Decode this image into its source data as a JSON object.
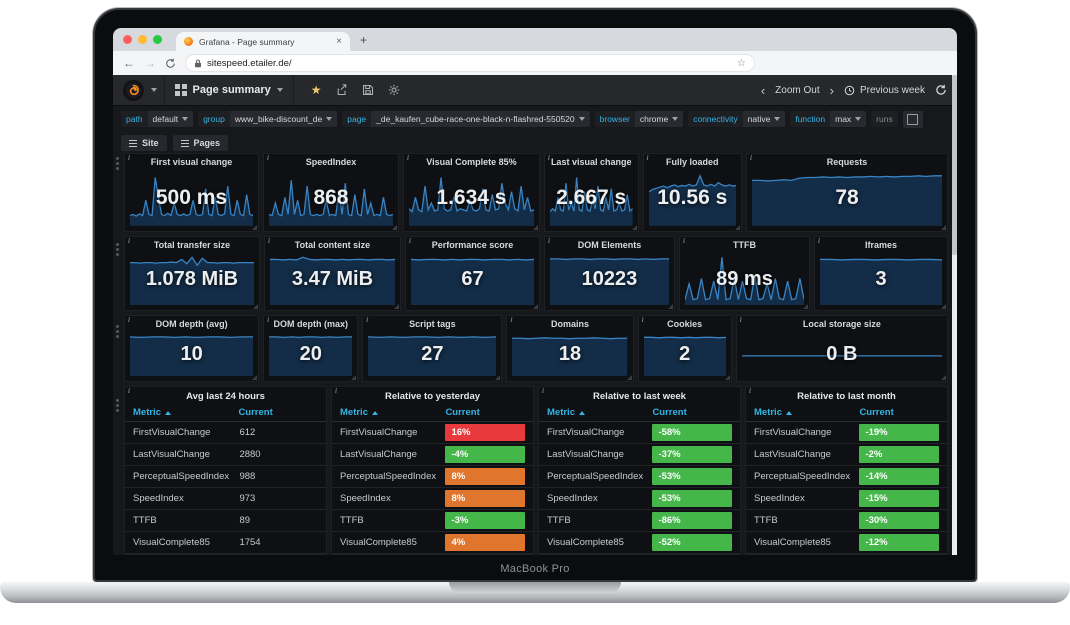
{
  "colors": {
    "green": "#45b649",
    "orange": "#e0752d",
    "red": "#e8393d",
    "accent_blue": "#33b5e5",
    "spark_line": "#3884c4",
    "spark_fill": "rgba(31,110,183,0.32)",
    "star_yellow": "#f2c96d"
  },
  "laptop": {
    "label": "MacBook Pro"
  },
  "browser": {
    "tab_title": "Grafana - Page summary",
    "url": "sitespeed.etailer.de/"
  },
  "icons": {
    "close": "×",
    "new_tab": "+",
    "back": "←",
    "forward": "→",
    "star": "★",
    "bookmark": "☆",
    "chev_left": "‹",
    "chev_right": "›"
  },
  "nav": {
    "title": "Page summary",
    "zoom_out": "Zoom Out",
    "time_range": "Previous week"
  },
  "filters": [
    {
      "label": "path",
      "value": "default"
    },
    {
      "label": "group",
      "value": "www_bike-discount_de"
    },
    {
      "label": "page",
      "value": "_de_kaufen_cube-race-one-black-n-flashred-550520"
    },
    {
      "label": "browser",
      "value": "chrome"
    },
    {
      "label": "connectivity",
      "value": "native"
    },
    {
      "label": "function",
      "value": "max"
    },
    {
      "label": "runs",
      "value": ""
    }
  ],
  "row_buttons": {
    "site": "Site",
    "pages": "Pages"
  },
  "stat_rows": [
    {
      "panels": [
        {
          "title": "First visual change",
          "value": "500 ms",
          "spark": "first_visual_change"
        },
        {
          "title": "SpeedIndex",
          "value": "868",
          "spark": "speedindex"
        },
        {
          "title": "Visual Complete 85%",
          "value": "1.634 s",
          "spark": "visual_complete"
        },
        {
          "title": "Last visual change",
          "value": "2.667 s",
          "spark": "last_visual_change"
        },
        {
          "title": "Fully loaded",
          "value": "10.56 s",
          "spark": "fully_loaded"
        },
        {
          "title": "Requests",
          "value": "78",
          "spark": "requests"
        }
      ]
    },
    {
      "panels": [
        {
          "title": "Total transfer size",
          "value": "1.078 MiB",
          "spark": "transfer"
        },
        {
          "title": "Total content size",
          "value": "3.47 MiB",
          "spark": "content"
        },
        {
          "title": "Performance score",
          "value": "67",
          "spark": "perf"
        },
        {
          "title": "DOM Elements",
          "value": "10223",
          "spark": "dom_elements"
        },
        {
          "title": "TTFB",
          "value": "89 ms",
          "spark": "ttfb"
        },
        {
          "title": "Iframes",
          "value": "3",
          "spark": "iframes"
        }
      ]
    },
    {
      "panels": [
        {
          "title": "DOM depth (avg)",
          "value": "10",
          "spark": "dom_avg"
        },
        {
          "title": "DOM depth (max)",
          "value": "20",
          "spark": "dom_max"
        },
        {
          "title": "Script tags",
          "value": "27",
          "spark": "script_tags"
        },
        {
          "title": "Domains",
          "value": "18",
          "spark": "domains"
        },
        {
          "title": "Cookies",
          "value": "2",
          "spark": "cookies"
        },
        {
          "title": "Local storage size",
          "value": "0 B",
          "spark": "local_storage"
        }
      ]
    }
  ],
  "tables": [
    {
      "title": "Avg last 24 hours",
      "col_metric": "Metric",
      "col_current": "Current",
      "rows": [
        {
          "metric": "FirstVisualChange",
          "current": "612",
          "color": "none"
        },
        {
          "metric": "LastVisualChange",
          "current": "2880",
          "color": "none"
        },
        {
          "metric": "PerceptualSpeedIndex",
          "current": "988",
          "color": "none"
        },
        {
          "metric": "SpeedIndex",
          "current": "973",
          "color": "none"
        },
        {
          "metric": "TTFB",
          "current": "89",
          "color": "none"
        },
        {
          "metric": "VisualComplete85",
          "current": "1754",
          "color": "none"
        }
      ]
    },
    {
      "title": "Relative to yesterday",
      "col_metric": "Metric",
      "col_current": "Current",
      "rows": [
        {
          "metric": "FirstVisualChange",
          "current": "16%",
          "color": "red"
        },
        {
          "metric": "LastVisualChange",
          "current": "-4%",
          "color": "green"
        },
        {
          "metric": "PerceptualSpeedIndex",
          "current": "8%",
          "color": "orange"
        },
        {
          "metric": "SpeedIndex",
          "current": "8%",
          "color": "orange"
        },
        {
          "metric": "TTFB",
          "current": "-3%",
          "color": "green"
        },
        {
          "metric": "VisualComplete85",
          "current": "4%",
          "color": "orange"
        }
      ]
    },
    {
      "title": "Relative to last week",
      "col_metric": "Metric",
      "col_current": "Current",
      "rows": [
        {
          "metric": "FirstVisualChange",
          "current": "-58%",
          "color": "green"
        },
        {
          "metric": "LastVisualChange",
          "current": "-37%",
          "color": "green"
        },
        {
          "metric": "PerceptualSpeedIndex",
          "current": "-53%",
          "color": "green"
        },
        {
          "metric": "SpeedIndex",
          "current": "-53%",
          "color": "green"
        },
        {
          "metric": "TTFB",
          "current": "-86%",
          "color": "green"
        },
        {
          "metric": "VisualComplete85",
          "current": "-52%",
          "color": "green"
        }
      ]
    },
    {
      "title": "Relative to last month",
      "col_metric": "Metric",
      "col_current": "Current",
      "rows": [
        {
          "metric": "FirstVisualChange",
          "current": "-19%",
          "color": "green"
        },
        {
          "metric": "LastVisualChange",
          "current": "-2%",
          "color": "green"
        },
        {
          "metric": "PerceptualSpeedIndex",
          "current": "-14%",
          "color": "green"
        },
        {
          "metric": "SpeedIndex",
          "current": "-15%",
          "color": "green"
        },
        {
          "metric": "TTFB",
          "current": "-30%",
          "color": "green"
        },
        {
          "metric": "VisualComplete85",
          "current": "-12%",
          "color": "green"
        }
      ]
    }
  ],
  "sparklines": {
    "first_visual_change": {
      "fill": "under",
      "points": [
        0.82,
        0.8,
        0.83,
        0.79,
        0.82,
        0.55,
        0.8,
        0.82,
        0.15,
        0.5,
        0.8,
        0.82,
        0.78,
        0.82,
        0.6,
        0.8,
        0.82,
        0.79,
        0.82,
        0.8,
        0.55,
        0.8,
        0.82,
        0.8,
        0.35,
        0.8,
        0.82,
        0.5,
        0.8,
        0.82,
        0.79,
        0.3,
        0.8,
        0.82,
        0.55,
        0.8,
        0.82,
        0.45,
        0.8,
        0.82
      ]
    },
    "speedindex": {
      "fill": "under",
      "points": [
        0.8,
        0.82,
        0.6,
        0.8,
        0.82,
        0.5,
        0.8,
        0.2,
        0.8,
        0.55,
        0.82,
        0.8,
        0.3,
        0.8,
        0.82,
        0.8,
        0.82,
        0.8,
        0.55,
        0.82,
        0.8,
        0.82,
        0.4,
        0.8,
        0.25,
        0.8,
        0.82,
        0.45,
        0.8,
        0.82,
        0.35,
        0.8,
        0.6,
        0.82,
        0.8,
        0.82,
        0.5,
        0.8,
        0.82,
        0.8
      ]
    },
    "visual_complete": {
      "fill": "under",
      "points": [
        0.7,
        0.75,
        0.5,
        0.72,
        0.75,
        0.3,
        0.72,
        0.6,
        0.74,
        0.72,
        0.15,
        0.7,
        0.74,
        0.72,
        0.5,
        0.74,
        0.7,
        0.72,
        0.74,
        0.55,
        0.72,
        0.74,
        0.7,
        0.35,
        0.72,
        0.74,
        0.45,
        0.72,
        0.7,
        0.25,
        0.6,
        0.72,
        0.4,
        0.7,
        0.74,
        0.3,
        0.72,
        0.5,
        0.74,
        0.72
      ]
    },
    "last_visual_change": {
      "fill": "under",
      "points": [
        0.75,
        0.7,
        0.74,
        0.5,
        0.72,
        0.74,
        0.25,
        0.72,
        0.6,
        0.74,
        0.15,
        0.72,
        0.74,
        0.4,
        0.72,
        0.74,
        0.55,
        0.7,
        0.3,
        0.72,
        0.74,
        0.5,
        0.72,
        0.35,
        0.74,
        0.72,
        0.6,
        0.74,
        0.72,
        0.45,
        0.74,
        0.7
      ]
    },
    "fully_loaded": {
      "fill": "under",
      "points": [
        0.4,
        0.36,
        0.34,
        0.32,
        0.3,
        0.33,
        0.3,
        0.28,
        0.31,
        0.29,
        0.3,
        0.27,
        0.3,
        0.28,
        0.12,
        0.28,
        0.3,
        0.27,
        0.3,
        0.24,
        0.28,
        0.3,
        0.28,
        0.3,
        0.29
      ]
    },
    "requests": {
      "fill": "under",
      "points": [
        0.2,
        0.2,
        0.21,
        0.2,
        0.19,
        0.2,
        0.16,
        0.15,
        0.15,
        0.14,
        0.15,
        0.14,
        0.15,
        0.14,
        0.14,
        0.13,
        0.14,
        0.13,
        0.14,
        0.13,
        0.13,
        0.12,
        0.13,
        0.12,
        0.12
      ]
    },
    "transfer": {
      "fill": "under",
      "points": [
        0.2,
        0.2,
        0.21,
        0.2,
        0.2,
        0.21,
        0.2,
        0.2,
        0.19,
        0.2,
        0.14,
        0.22,
        0.1,
        0.25,
        0.12,
        0.2,
        0.2,
        0.21,
        0.2,
        0.2,
        0.21,
        0.2,
        0.2,
        0.2,
        0.2
      ]
    },
    "content": {
      "fill": "under",
      "points": [
        0.14,
        0.14,
        0.15,
        0.14,
        0.15,
        0.1,
        0.14,
        0.15,
        0.14,
        0.14,
        0.15,
        0.14,
        0.15,
        0.14,
        0.14,
        0.15,
        0.14,
        0.14,
        0.15,
        0.14
      ]
    },
    "perf": {
      "fill": "under",
      "points": [
        0.14,
        0.15,
        0.14,
        0.14,
        0.15,
        0.14,
        0.15,
        0.14,
        0.14,
        0.15,
        0.14,
        0.14,
        0.15,
        0.14,
        0.15,
        0.14
      ]
    },
    "dom_elements": {
      "fill": "under",
      "points": [
        0.13,
        0.13,
        0.14,
        0.13,
        0.13,
        0.14,
        0.13,
        0.13,
        0.14,
        0.13,
        0.13,
        0.14,
        0.13,
        0.14,
        0.13,
        0.13
      ]
    },
    "ttfb": {
      "fill": "under",
      "points": [
        0.9,
        0.6,
        0.9,
        0.88,
        0.5,
        0.9,
        0.88,
        0.55,
        0.9,
        0.1,
        0.9,
        0.88,
        0.5,
        0.9,
        0.55,
        0.88,
        0.9,
        0.45,
        0.9,
        0.88,
        0.6,
        0.9,
        0.5,
        0.88,
        0.9,
        0.55,
        0.9,
        0.88,
        0.5,
        0.9
      ]
    },
    "iframes": {
      "fill": "under",
      "points": [
        0.14,
        0.14,
        0.15,
        0.14,
        0.14,
        0.15,
        0.14,
        0.14,
        0.15,
        0.14,
        0.14,
        0.15
      ]
    },
    "dom_avg": {
      "fill": "under",
      "points": [
        0.13,
        0.14,
        0.13,
        0.13,
        0.14,
        0.13,
        0.14,
        0.13,
        0.13,
        0.14,
        0.13,
        0.13
      ]
    },
    "dom_max": {
      "fill": "under",
      "points": [
        0.13,
        0.13,
        0.14,
        0.13,
        0.14,
        0.13,
        0.13,
        0.14,
        0.13,
        0.14,
        0.13,
        0.13
      ]
    },
    "script_tags": {
      "fill": "under",
      "points": [
        0.13,
        0.14,
        0.13,
        0.14,
        0.13,
        0.13,
        0.14,
        0.13,
        0.14,
        0.13,
        0.14,
        0.13
      ]
    },
    "domains": {
      "fill": "under",
      "points": [
        0.16,
        0.16,
        0.17,
        0.16,
        0.15,
        0.16,
        0.16,
        0.17,
        0.16,
        0.16,
        0.15,
        0.16,
        0.17,
        0.16,
        0.16
      ]
    },
    "cookies": {
      "fill": "under",
      "points": [
        0.14,
        0.14,
        0.15,
        0.14,
        0.14,
        0.15,
        0.14,
        0.15,
        0.14,
        0.14,
        0.15,
        0.14
      ]
    },
    "local_storage": {
      "fill": "none",
      "points": [
        0.55,
        0.55,
        0.55,
        0.55,
        0.55,
        0.55,
        0.55,
        0.55
      ]
    }
  }
}
